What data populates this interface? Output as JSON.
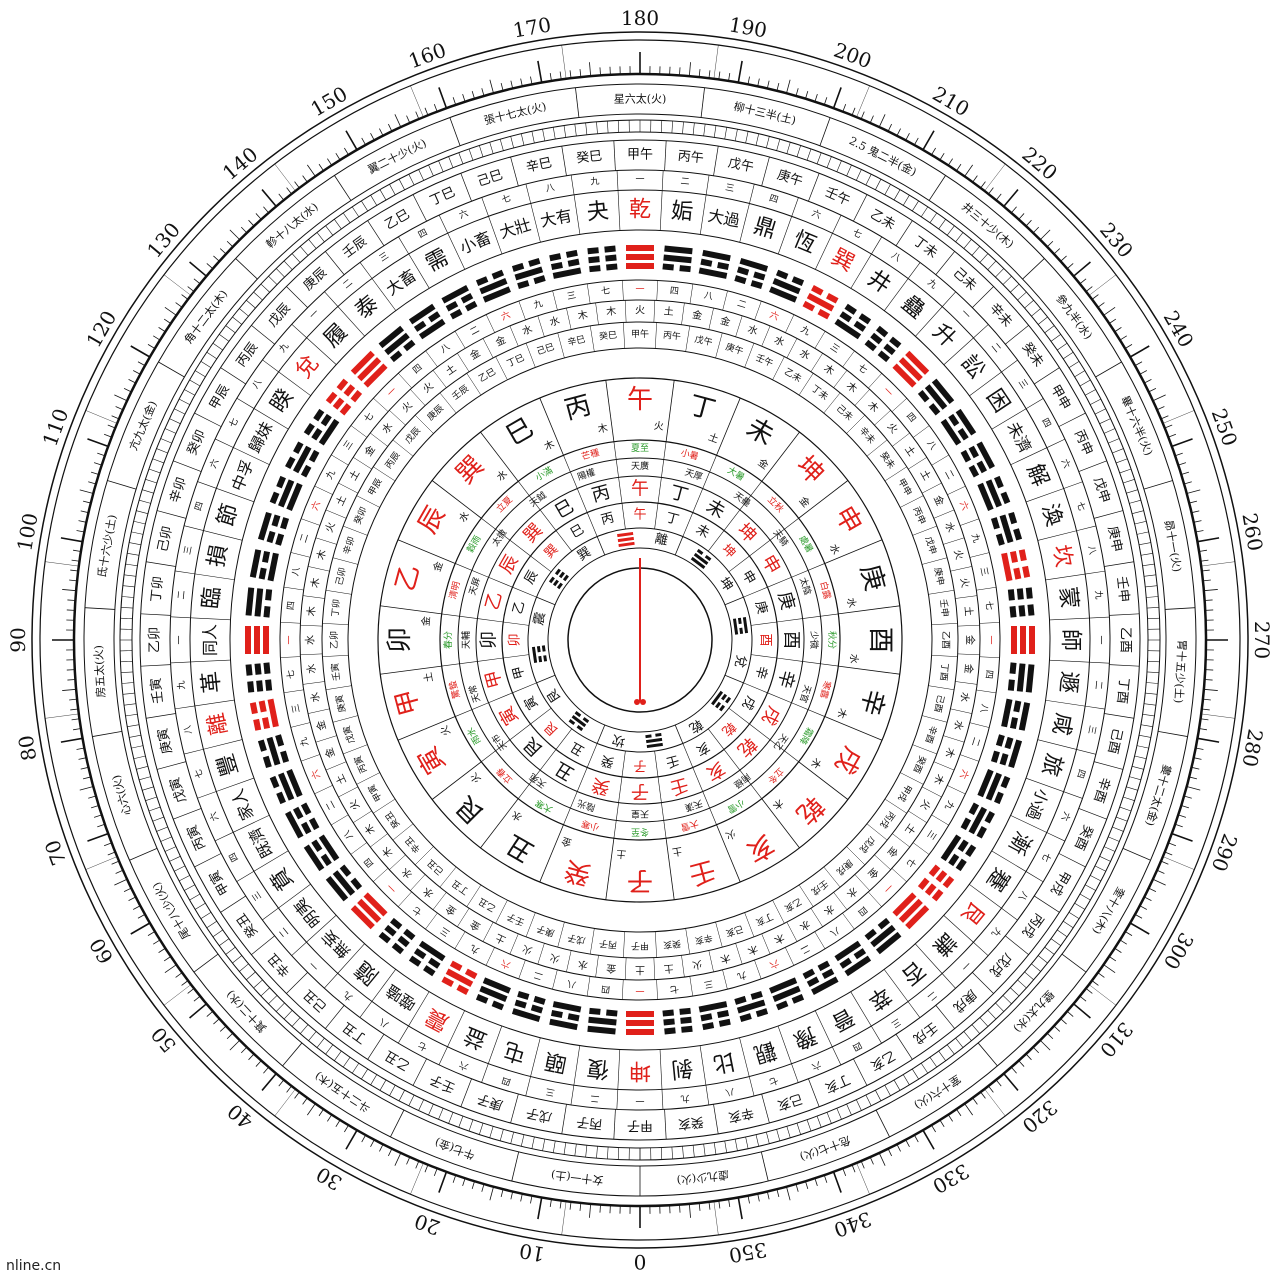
{
  "watermark": "nline.cn",
  "degree_labels": [
    "0",
    "10",
    "20",
    "30",
    "40",
    "50",
    "60",
    "70",
    "80",
    "90",
    "100",
    "110",
    "120",
    "130",
    "140",
    "150",
    "160",
    "170",
    "180",
    "190",
    "200",
    "210",
    "220",
    "230",
    "240",
    "250",
    "260",
    "270",
    "280",
    "290",
    "300",
    "310",
    "320",
    "330",
    "340",
    "350"
  ],
  "mansion_ring": [
    "星六太(火)",
    "柳十三半(土)",
    "2.5 鬼二半(金)",
    "井三十少(木)",
    "參九半(水)",
    "畢十六半(火)",
    "昴十一(火)",
    "胃十五少(土)",
    "婁十二太(金)",
    "奎十八(木)",
    "壁九太(水)",
    "室十六(火)",
    "危十七(火)",
    "虛九少(火)",
    "女十一(土)",
    "牛七(金)",
    "斗二十五(木)",
    "箕十二(水)",
    "尾十八少(火)",
    "心六(火)",
    "房五太(火)",
    "氐十六少(土)",
    "亢九太(金)",
    "角十二太(木)",
    "軫十八太(水)",
    "翼二十少(火)",
    "張十七太(火)"
  ],
  "ganzhi_outer": [
    "甲午",
    "丙午",
    "戊午",
    "庚午",
    "壬午",
    "乙未",
    "丁未",
    "己未",
    "辛未",
    "癸未",
    "甲申",
    "丙申",
    "戊申",
    "庚申",
    "壬申",
    "乙酉",
    "丁酉",
    "己酉",
    "辛酉",
    "癸酉",
    "甲戌",
    "丙戌",
    "戊戌",
    "庚戌",
    "壬戌",
    "乙亥",
    "丁亥",
    "己亥",
    "辛亥",
    "癸亥",
    "甲子",
    "丙子",
    "戊子",
    "庚子",
    "壬子",
    "乙丑",
    "丁丑",
    "己丑",
    "辛丑",
    "癸丑",
    "甲寅",
    "丙寅",
    "戊寅",
    "庚寅",
    "壬寅",
    "乙卯",
    "丁卯",
    "己卯",
    "辛卯",
    "癸卯",
    "甲辰",
    "丙辰",
    "戊辰",
    "庚辰",
    "壬辰",
    "乙巳",
    "丁巳",
    "己巳",
    "辛巳",
    "癸巳"
  ],
  "hexagram_names": [
    "乾",
    "姤",
    "大過",
    "鼎",
    "恆",
    "巽",
    "井",
    "蠱",
    "升",
    "訟",
    "困",
    "未濟",
    "解",
    "渙",
    "坎",
    "蒙",
    "師",
    "遯",
    "咸",
    "旅",
    "小過",
    "漸",
    "蹇",
    "艮",
    "謙",
    "否",
    "萃",
    "晉",
    "豫",
    "觀",
    "比",
    "剝",
    "坤",
    "復",
    "頤",
    "屯",
    "益",
    "震",
    "噬嗑",
    "隨",
    "無妄",
    "明夷",
    "賁",
    "既濟",
    "家人",
    "豐",
    "離",
    "革",
    "同人",
    "臨",
    "損",
    "節",
    "中孚",
    "歸妹",
    "睽",
    "兌",
    "履",
    "泰",
    "大畜",
    "需",
    "小畜",
    "大壯",
    "大有",
    "夬"
  ],
  "hexagram_red": [
    "乾",
    "巽",
    "坎",
    "艮",
    "坤",
    "震",
    "離",
    "兌"
  ],
  "mountains_24": [
    "午",
    "丁",
    "未",
    "坤",
    "申",
    "庚",
    "酉",
    "辛",
    "戌",
    "乾",
    "亥",
    "壬",
    "子",
    "癸",
    "丑",
    "艮",
    "寅",
    "甲",
    "卯",
    "乙",
    "辰",
    "巽",
    "巳",
    "丙"
  ],
  "mountains_red": [
    "午",
    "坤",
    "申",
    "戌",
    "乾",
    "亥",
    "壬",
    "子",
    "癸",
    "寅",
    "甲",
    "乙",
    "辰",
    "巽"
  ],
  "solar_terms": [
    "夏至",
    "小暑",
    "大暑",
    "立秋",
    "處暑",
    "白露",
    "秋分",
    "寒露",
    "霜降",
    "立冬",
    "小雪",
    "大雪",
    "冬至",
    "小寒",
    "大寒",
    "立春",
    "雨水",
    "驚蟄",
    "春分",
    "清明",
    "穀雨",
    "立夏",
    "小滿",
    "芒種"
  ],
  "stars_ring": [
    "天廣",
    "天厚",
    "天壘",
    "天騎",
    "太陰",
    "少微",
    "天官",
    "天乙",
    "南極",
    "天漢",
    "天皇",
    "陰光",
    "天苑",
    "天市",
    "天常",
    "天輔",
    "天屏",
    "太微",
    "天鉞",
    "陽權"
  ],
  "wuxing_ring": [
    "火",
    "土",
    "金",
    "金",
    "水",
    "水",
    "水",
    "木",
    "木",
    "木",
    "火",
    "土",
    "土",
    "金",
    "水",
    "火",
    "火",
    "土",
    "金",
    "金",
    "水",
    "水",
    "木",
    "木"
  ],
  "number_ring": [
    "一",
    "二",
    "三",
    "四",
    "六",
    "七",
    "八",
    "九"
  ],
  "inner_trigrams": [
    "離",
    "坤",
    "兌",
    "乾",
    "坎",
    "艮",
    "震",
    "巽"
  ],
  "inner_branches": [
    "子",
    "癸",
    "丑",
    "艮",
    "寅",
    "甲",
    "卯",
    "乙",
    "辰",
    "巽",
    "巳",
    "丙",
    "午",
    "丁",
    "未",
    "坤",
    "申",
    "庚",
    "酉",
    "辛",
    "戌",
    "乾",
    "亥",
    "壬"
  ],
  "center_sequence": [
    "亥",
    "坤",
    "酉",
    "巽",
    "兌",
    "卯",
    "巳",
    "乾",
    "艮"
  ],
  "colors": {
    "ink": "#111111",
    "red": "#e0201a",
    "green": "#2a9a2a",
    "paper": "#ffffff"
  }
}
